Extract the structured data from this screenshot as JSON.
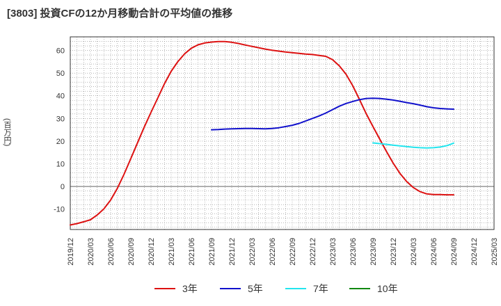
{
  "title": "[3803]  投資CFの12か月移動合計の平均値の推移",
  "chart_data": {
    "type": "line",
    "ylabel": "(百万円)",
    "ylim": [
      -19,
      66
    ],
    "yticks": [
      -10,
      0,
      10,
      20,
      30,
      40,
      50,
      60
    ],
    "xlim": [
      "2019/12",
      "2025/03"
    ],
    "xticks": [
      "2019/12",
      "2020/03",
      "2020/06",
      "2020/09",
      "2020/12",
      "2021/03",
      "2021/06",
      "2021/09",
      "2021/12",
      "2022/03",
      "2022/06",
      "2022/09",
      "2022/12",
      "2023/03",
      "2023/06",
      "2023/09",
      "2023/12",
      "2024/03",
      "2024/06",
      "2024/09",
      "2024/12",
      "2025/03"
    ],
    "grid": true,
    "legend_position": "bottom",
    "series": [
      {
        "name": "3年",
        "color": "#dd1111",
        "x": [
          "2019/12",
          "2020/01",
          "2020/02",
          "2020/03",
          "2020/04",
          "2020/05",
          "2020/06",
          "2020/07",
          "2020/08",
          "2020/09",
          "2020/10",
          "2020/11",
          "2020/12",
          "2021/01",
          "2021/02",
          "2021/03",
          "2021/04",
          "2021/05",
          "2021/06",
          "2021/07",
          "2021/08",
          "2021/09",
          "2021/10",
          "2021/11",
          "2021/12",
          "2022/01",
          "2022/02",
          "2022/03",
          "2022/04",
          "2022/05",
          "2022/06",
          "2022/07",
          "2022/08",
          "2022/09",
          "2022/10",
          "2022/11",
          "2022/12",
          "2023/01",
          "2023/02",
          "2023/03",
          "2023/04",
          "2023/05",
          "2023/06",
          "2023/07",
          "2023/08",
          "2023/09",
          "2023/10",
          "2023/11",
          "2023/12",
          "2024/01",
          "2024/02",
          "2024/03",
          "2024/04",
          "2024/05",
          "2024/06",
          "2024/07",
          "2024/08",
          "2024/09"
        ],
        "values": [
          -17,
          -16.4,
          -15.6,
          -14.7,
          -12.6,
          -9.9,
          -6.0,
          -0.8,
          5.4,
          12.3,
          19.3,
          26.2,
          32.7,
          39.0,
          45.3,
          50.8,
          55.1,
          58.5,
          61.0,
          62.5,
          63.3,
          63.7,
          63.9,
          63.9,
          63.6,
          63.1,
          62.4,
          61.8,
          61.2,
          60.6,
          60.1,
          59.7,
          59.3,
          59.0,
          58.7,
          58.4,
          58.2,
          57.8,
          57.4,
          55.9,
          53.2,
          49.5,
          44.4,
          38.3,
          32.1,
          26.4,
          20.9,
          15.5,
          10.3,
          5.8,
          2.2,
          -0.5,
          -2.3,
          -3.3,
          -3.6,
          -3.6,
          -3.7,
          -3.7
        ]
      },
      {
        "name": "5年",
        "color": "#1111cc",
        "x": [
          "2021/09",
          "2021/10",
          "2021/11",
          "2021/12",
          "2022/01",
          "2022/02",
          "2022/03",
          "2022/04",
          "2022/05",
          "2022/06",
          "2022/07",
          "2022/08",
          "2022/09",
          "2022/10",
          "2022/11",
          "2022/12",
          "2023/01",
          "2023/02",
          "2023/03",
          "2023/04",
          "2023/05",
          "2023/06",
          "2023/07",
          "2023/08",
          "2023/09",
          "2023/10",
          "2023/11",
          "2023/12",
          "2024/01",
          "2024/02",
          "2024/03",
          "2024/04",
          "2024/05",
          "2024/06",
          "2024/07",
          "2024/08",
          "2024/09"
        ],
        "values": [
          25.0,
          25.1,
          25.3,
          25.4,
          25.5,
          25.6,
          25.6,
          25.5,
          25.4,
          25.6,
          25.9,
          26.4,
          27.0,
          27.8,
          28.9,
          30.0,
          31.1,
          32.4,
          33.9,
          35.4,
          36.6,
          37.5,
          38.3,
          38.8,
          38.9,
          38.8,
          38.5,
          38.1,
          37.6,
          37.0,
          36.5,
          35.9,
          35.2,
          34.7,
          34.4,
          34.2,
          34.1
        ]
      },
      {
        "name": "7年",
        "color": "#22e5ee",
        "x": [
          "2023/09",
          "2023/10",
          "2023/11",
          "2023/12",
          "2024/01",
          "2024/02",
          "2024/03",
          "2024/04",
          "2024/05",
          "2024/06",
          "2024/07",
          "2024/08",
          "2024/09"
        ],
        "values": [
          19.2,
          18.9,
          18.6,
          18.2,
          17.9,
          17.6,
          17.3,
          17.1,
          17.0,
          17.1,
          17.4,
          18.0,
          19.1
        ]
      },
      {
        "name": "10年",
        "color": "#118811",
        "x": [],
        "values": []
      }
    ]
  }
}
